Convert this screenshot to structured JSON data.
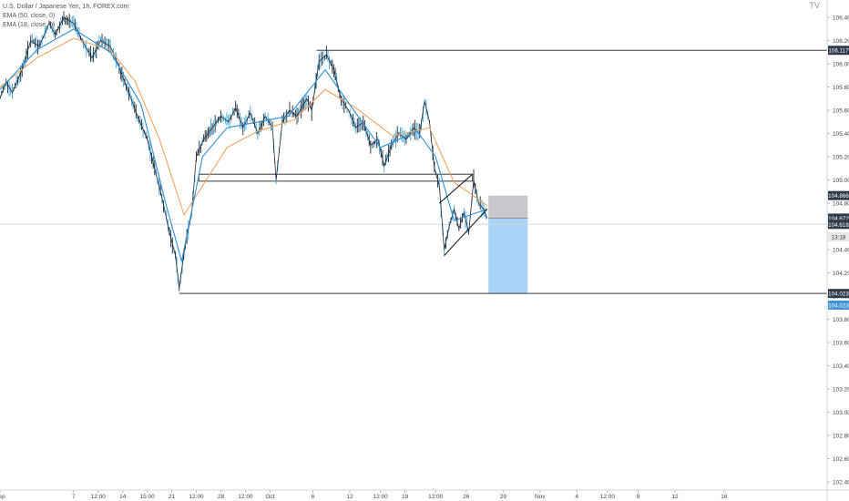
{
  "legend": {
    "symbol": "U.S. Dollar / Japanese Yen, 1h, FOREX.com",
    "ema1": "EMA (50, close, 0)",
    "ema2": "EMA (18, close, 0)"
  },
  "brand_mark": "TV",
  "colors": {
    "candles": "#1c2a3a",
    "candle_accent": "#3aa8d8",
    "ema_slow": "#f3a25f",
    "ema_fast": "#2f8fd8",
    "level_line": "#3a3a3a",
    "stop_zone": "#c8c8cc",
    "target_zone": "#a8d3f7",
    "price_label_bg": "#2f3a4a",
    "target_label_bg": "#3c93d6",
    "axis_text": "#444444",
    "last_price_line": "#d8d8d8"
  },
  "chart_data": {
    "type": "line",
    "title": "U.S. Dollar / Japanese Yen, 1h, FOREX.com",
    "xlabel": "",
    "ylabel": "",
    "ylim": [
      102.33,
      106.55
    ],
    "y_ticks": [
      106.4,
      106.2,
      106.0,
      105.8,
      105.6,
      105.4,
      105.2,
      105.0,
      104.8,
      104.6,
      104.4,
      104.2,
      104.0,
      103.8,
      103.6,
      103.4,
      103.2,
      103.0,
      102.8,
      102.6,
      102.4
    ],
    "y_tick_labels": [
      "106.400",
      "106.200",
      "106.000",
      "105.800",
      "105.600",
      "105.400",
      "105.200",
      "105.000",
      "104.800",
      "104.600",
      "104.400",
      "104.200",
      "104.000",
      "103.800",
      "103.600",
      "103.400",
      "103.200",
      "103.000",
      "102.800",
      "102.600",
      "102.400"
    ],
    "x_ticks": [
      {
        "t": 0,
        "label": "Sep"
      },
      {
        "t": 6,
        "label": "7"
      },
      {
        "t": 8,
        "label": "12:00"
      },
      {
        "t": 10,
        "label": "14"
      },
      {
        "t": 12,
        "label": "15:00"
      },
      {
        "t": 14,
        "label": "21"
      },
      {
        "t": 16,
        "label": "12:00"
      },
      {
        "t": 18,
        "label": "28"
      },
      {
        "t": 20,
        "label": "12:00"
      },
      {
        "t": 22,
        "label": "Oct"
      },
      {
        "t": 25.5,
        "label": "6"
      },
      {
        "t": 28.5,
        "label": "12"
      },
      {
        "t": 31,
        "label": "12:00"
      },
      {
        "t": 33,
        "label": "19"
      },
      {
        "t": 35.5,
        "label": "12:00"
      },
      {
        "t": 38,
        "label": "26"
      },
      {
        "t": 41,
        "label": "29"
      },
      {
        "t": 44,
        "label": "Nov"
      },
      {
        "t": 47,
        "label": "4"
      },
      {
        "t": 49.5,
        "label": "12:00"
      },
      {
        "t": 52,
        "label": "9"
      },
      {
        "t": 55,
        "label": "12"
      },
      {
        "t": 59,
        "label": "16"
      }
    ],
    "t_range": [
      0,
      67.4
    ],
    "price_path": [
      [
        0,
        105.7
      ],
      [
        0.5,
        105.85
      ],
      [
        1,
        105.75
      ],
      [
        1.8,
        105.95
      ],
      [
        2.5,
        106.2
      ],
      [
        3.2,
        106.15
      ],
      [
        4,
        106.35
      ],
      [
        4.5,
        106.25
      ],
      [
        5.2,
        106.4
      ],
      [
        6,
        106.35
      ],
      [
        6.8,
        106.18
      ],
      [
        7.5,
        106.05
      ],
      [
        8.2,
        106.2
      ],
      [
        9,
        106.15
      ],
      [
        9.6,
        106.0
      ],
      [
        10.5,
        105.75
      ],
      [
        11.2,
        105.55
      ],
      [
        12,
        105.35
      ],
      [
        12.6,
        105.1
      ],
      [
        13.2,
        104.85
      ],
      [
        13.8,
        104.55
      ],
      [
        14.3,
        104.35
      ],
      [
        14.6,
        104.07
      ],
      [
        15.1,
        104.45
      ],
      [
        15.6,
        104.7
      ],
      [
        16.0,
        105.2
      ],
      [
        16.6,
        105.35
      ],
      [
        17.3,
        105.45
      ],
      [
        18.0,
        105.55
      ],
      [
        18.6,
        105.5
      ],
      [
        19.2,
        105.62
      ],
      [
        19.8,
        105.45
      ],
      [
        20.4,
        105.58
      ],
      [
        21.0,
        105.4
      ],
      [
        21.6,
        105.55
      ],
      [
        22.2,
        105.45
      ],
      [
        22.5,
        105.0
      ],
      [
        23.0,
        105.5
      ],
      [
        23.6,
        105.6
      ],
      [
        24.2,
        105.55
      ],
      [
        25.0,
        105.7
      ],
      [
        25.4,
        105.6
      ],
      [
        26.0,
        106.02
      ],
      [
        26.6,
        106.08
      ],
      [
        27.2,
        105.95
      ],
      [
        27.8,
        105.7
      ],
      [
        28.4,
        105.6
      ],
      [
        29.0,
        105.45
      ],
      [
        29.6,
        105.5
      ],
      [
        30.2,
        105.3
      ],
      [
        30.8,
        105.35
      ],
      [
        31.3,
        105.12
      ],
      [
        31.9,
        105.3
      ],
      [
        32.5,
        105.4
      ],
      [
        33.1,
        105.35
      ],
      [
        33.7,
        105.45
      ],
      [
        34.2,
        105.4
      ],
      [
        34.6,
        105.68
      ],
      [
        35.0,
        105.5
      ],
      [
        35.4,
        105.1
      ],
      [
        35.8,
        104.95
      ],
      [
        36.2,
        104.4
      ],
      [
        36.6,
        104.6
      ],
      [
        37.0,
        104.75
      ],
      [
        37.4,
        104.58
      ],
      [
        37.8,
        104.72
      ],
      [
        38.2,
        104.55
      ],
      [
        38.6,
        105.0
      ],
      [
        39.0,
        104.8
      ],
      [
        39.4,
        104.75
      ],
      [
        39.7,
        104.672
      ]
    ],
    "series": [
      {
        "name": "EMA (50, close, 0)",
        "values": [
          [
            0,
            105.8
          ],
          [
            3,
            106.05
          ],
          [
            6,
            106.22
          ],
          [
            9,
            106.12
          ],
          [
            11,
            105.85
          ],
          [
            13,
            105.35
          ],
          [
            15,
            104.7
          ],
          [
            16.5,
            104.95
          ],
          [
            18.5,
            105.28
          ],
          [
            21,
            105.42
          ],
          [
            24,
            105.52
          ],
          [
            26.5,
            105.78
          ],
          [
            29,
            105.62
          ],
          [
            32,
            105.38
          ],
          [
            35,
            105.45
          ],
          [
            37,
            104.98
          ],
          [
            39.7,
            104.78
          ]
        ]
      },
      {
        "name": "EMA (18, close, 0)",
        "values": [
          [
            0,
            105.78
          ],
          [
            3,
            106.12
          ],
          [
            6,
            106.3
          ],
          [
            9,
            106.1
          ],
          [
            11.5,
            105.65
          ],
          [
            13.5,
            104.8
          ],
          [
            14.8,
            104.3
          ],
          [
            16.5,
            105.2
          ],
          [
            18.5,
            105.45
          ],
          [
            21,
            105.5
          ],
          [
            23.5,
            105.55
          ],
          [
            26.5,
            105.95
          ],
          [
            28.5,
            105.65
          ],
          [
            31,
            105.28
          ],
          [
            34,
            105.42
          ],
          [
            35.5,
            105.2
          ],
          [
            37,
            104.65
          ],
          [
            39.7,
            104.75
          ]
        ]
      }
    ],
    "annotations": {
      "resistance_level": {
        "price": 106.117,
        "t_start": 25.8,
        "label": "106.117"
      },
      "support_level": {
        "price": 104.023,
        "t_start": 14.6,
        "label": "104.023"
      },
      "zone_top": 105.05,
      "zone_bottom": 104.99,
      "zone_t_start": 16.2,
      "zone_t_end": 38.5,
      "wedge_upper": [
        [
          35.8,
          104.8
        ],
        [
          38.5,
          105.05
        ]
      ],
      "wedge_lower": [
        [
          36.2,
          104.35
        ],
        [
          39.7,
          104.75
        ]
      ],
      "short_position": {
        "t_start": 39.8,
        "t_end": 43.0,
        "stop": 104.866,
        "entry": 104.672,
        "target": 104.023,
        "stop_label": "104.866",
        "target_label": "104.023"
      },
      "last_price": {
        "price": 104.672,
        "label": "104.672"
      },
      "price_618": {
        "price": 104.618,
        "label": "104.618"
      },
      "countdown": {
        "price": 104.51,
        "label": "13:18"
      }
    }
  }
}
